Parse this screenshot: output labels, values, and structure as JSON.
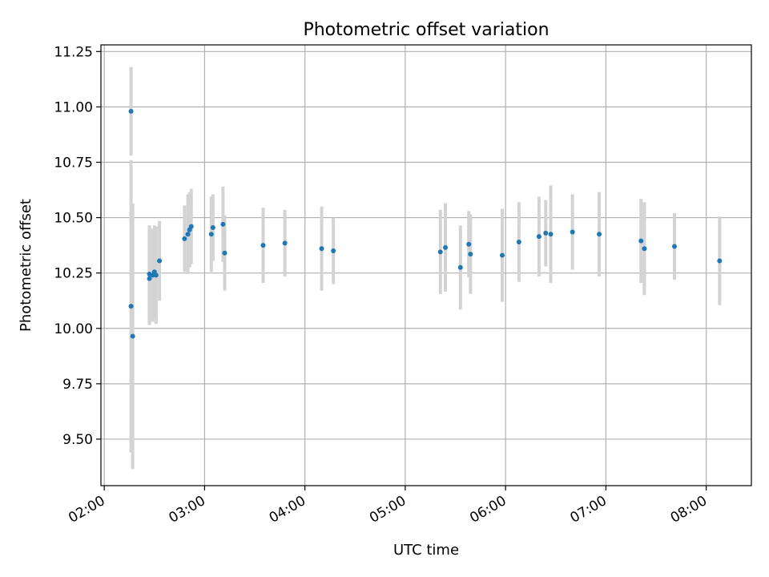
{
  "chart_data": {
    "type": "scatter",
    "title": "Photometric offset variation",
    "xlabel": "UTC time",
    "ylabel": "Photometric offset",
    "x_ticks": [
      "02:00",
      "03:00",
      "04:00",
      "05:00",
      "06:00",
      "07:00",
      "08:00"
    ],
    "y_ticks": [
      "9.50",
      "9.75",
      "10.00",
      "10.25",
      "10.50",
      "10.75",
      "11.00",
      "11.25"
    ],
    "xlim": [
      "01:58",
      "08:27"
    ],
    "ylim": [
      9.29,
      11.28
    ],
    "grid": true,
    "colors": {
      "points": "#1f77b4",
      "error_bars": "#d3d3d3",
      "grid": "#b0b0b0"
    },
    "points": [
      {
        "x": "02:16",
        "y": 10.98,
        "err": 0.2
      },
      {
        "x": "02:16",
        "y": 10.1,
        "err": 0.66
      },
      {
        "x": "02:17",
        "y": 9.965,
        "err": 0.6
      },
      {
        "x": "02:27",
        "y": 10.225,
        "err": 0.21
      },
      {
        "x": "02:27",
        "y": 10.245,
        "err": 0.22
      },
      {
        "x": "02:29",
        "y": 10.24,
        "err": 0.21
      },
      {
        "x": "02:30",
        "y": 10.255,
        "err": 0.21
      },
      {
        "x": "02:31",
        "y": 10.24,
        "err": 0.22
      },
      {
        "x": "02:33",
        "y": 10.305,
        "err": 0.18
      },
      {
        "x": "02:48",
        "y": 10.405,
        "err": 0.15
      },
      {
        "x": "02:50",
        "y": 10.425,
        "err": 0.18
      },
      {
        "x": "02:51",
        "y": 10.445,
        "err": 0.17
      },
      {
        "x": "02:52",
        "y": 10.46,
        "err": 0.17
      },
      {
        "x": "03:04",
        "y": 10.425,
        "err": 0.17
      },
      {
        "x": "03:05",
        "y": 10.455,
        "err": 0.15
      },
      {
        "x": "03:11",
        "y": 10.47,
        "err": 0.17
      },
      {
        "x": "03:12",
        "y": 10.34,
        "err": 0.17
      },
      {
        "x": "03:35",
        "y": 10.375,
        "err": 0.17
      },
      {
        "x": "03:48",
        "y": 10.385,
        "err": 0.15
      },
      {
        "x": "04:10",
        "y": 10.36,
        "err": 0.19
      },
      {
        "x": "04:17",
        "y": 10.35,
        "err": 0.15
      },
      {
        "x": "05:21",
        "y": 10.345,
        "err": 0.19
      },
      {
        "x": "05:24",
        "y": 10.365,
        "err": 0.2
      },
      {
        "x": "05:33",
        "y": 10.275,
        "err": 0.19
      },
      {
        "x": "05:38",
        "y": 10.38,
        "err": 0.15
      },
      {
        "x": "05:39",
        "y": 10.335,
        "err": 0.18
      },
      {
        "x": "05:58",
        "y": 10.33,
        "err": 0.21
      },
      {
        "x": "06:08",
        "y": 10.39,
        "err": 0.18
      },
      {
        "x": "06:20",
        "y": 10.415,
        "err": 0.18
      },
      {
        "x": "06:24",
        "y": 10.43,
        "err": 0.15
      },
      {
        "x": "06:27",
        "y": 10.425,
        "err": 0.22
      },
      {
        "x": "06:40",
        "y": 10.435,
        "err": 0.17
      },
      {
        "x": "06:56",
        "y": 10.425,
        "err": 0.19
      },
      {
        "x": "07:21",
        "y": 10.395,
        "err": 0.19
      },
      {
        "x": "07:23",
        "y": 10.36,
        "err": 0.21
      },
      {
        "x": "07:41",
        "y": 10.37,
        "err": 0.15
      },
      {
        "x": "08:08",
        "y": 10.305,
        "err": 0.2
      }
    ]
  }
}
